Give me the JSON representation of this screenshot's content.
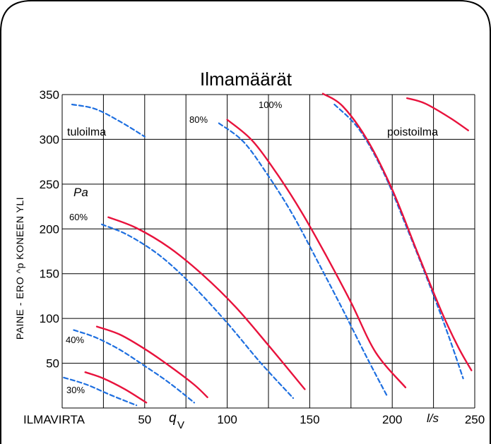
{
  "chart_data": {
    "type": "line",
    "title": "Ilmamäärät",
    "ylabel": "PAINE - ERO ^p KONEEN YLI",
    "y_unit": "Pa",
    "xlabel": "ILMAVIRTA",
    "x_symbol": "q",
    "x_symbol_sub": "V",
    "x_unit": "l/s",
    "xlim": [
      0,
      250
    ],
    "ylim": [
      0,
      350
    ],
    "x_grid": [
      0,
      25,
      50,
      75,
      100,
      125,
      150,
      175,
      200,
      225,
      250
    ],
    "y_grid": [
      0,
      50,
      100,
      150,
      200,
      250,
      300,
      350
    ],
    "x_ticks": [
      50,
      100,
      150,
      200,
      250
    ],
    "y_ticks": [
      50,
      100,
      150,
      200,
      250,
      300,
      350
    ],
    "grid": true,
    "annotations": {
      "supply": "tuloilma",
      "exhaust": "poistoilma",
      "pct_30": "30%",
      "pct_40": "40%",
      "pct_60": "60%",
      "pct_80": "80%",
      "pct_100": "100%"
    },
    "series": [
      {
        "group": "tuloilma",
        "level": "30%",
        "color": "#1e6fe0",
        "dash": true,
        "x": [
          1,
          15,
          30,
          45
        ],
        "y": [
          34,
          26,
          14,
          3
        ]
      },
      {
        "group": "poistoilma",
        "level": "30%",
        "color": "#e8123c",
        "dash": false,
        "x": [
          14,
          25,
          38,
          51
        ],
        "y": [
          40,
          33,
          21,
          6
        ]
      },
      {
        "group": "tuloilma",
        "level": "40%",
        "color": "#1e6fe0",
        "dash": true,
        "x": [
          7,
          20,
          35,
          50,
          65,
          80
        ],
        "y": [
          87,
          79,
          65,
          47,
          28,
          6
        ]
      },
      {
        "group": "poistoilma",
        "level": "40%",
        "color": "#e8123c",
        "dash": false,
        "x": [
          21,
          35,
          50,
          65,
          80,
          88
        ],
        "y": [
          91,
          82,
          66,
          47,
          26,
          12
        ]
      },
      {
        "group": "tuloilma",
        "level": "60%",
        "color": "#1e6fe0",
        "dash": true,
        "x": [
          24,
          40,
          60,
          80,
          100,
          120,
          140
        ],
        "y": [
          205,
          193,
          169,
          135,
          95,
          51,
          11
        ]
      },
      {
        "group": "poistoilma",
        "level": "60%",
        "color": "#e8123c",
        "dash": false,
        "x": [
          28,
          45,
          65,
          85,
          105,
          125,
          147
        ],
        "y": [
          213,
          201,
          179,
          149,
          113,
          70,
          21
        ]
      },
      {
        "group": "tuloilma",
        "level": "80%",
        "color": "#1e6fe0",
        "dash": true,
        "x": [
          95,
          110,
          125,
          140,
          155,
          170,
          185,
          197
        ],
        "y": [
          318,
          297,
          259,
          215,
          163,
          110,
          55,
          13
        ]
      },
      {
        "group": "poistoilma",
        "level": "80%",
        "color": "#e8123c",
        "dash": false,
        "x": [
          100,
          115,
          130,
          145,
          160,
          175,
          190,
          208
        ],
        "y": [
          322,
          299,
          262,
          219,
          170,
          118,
          62,
          23
        ]
      },
      {
        "group": "tuloilma",
        "level": "100%",
        "color": "#1e6fe0",
        "dash": true,
        "x": [
          165,
          180,
          195,
          210,
          225,
          235,
          243
        ],
        "y": [
          339,
          311,
          262,
          196,
          126,
          76,
          33
        ]
      },
      {
        "group": "poistoilma",
        "level": "100%",
        "color": "#e8123c",
        "dash": false,
        "x": [
          158,
          170,
          185,
          200,
          215,
          230,
          240,
          248
        ],
        "y": [
          351,
          337,
          299,
          244,
          175,
          107,
          68,
          42
        ]
      },
      {
        "group": "tuloilma",
        "level": "top",
        "color": "#1e6fe0",
        "dash": true,
        "x": [
          6,
          20,
          35,
          50
        ],
        "y": [
          339,
          334,
          320,
          303
        ]
      },
      {
        "group": "poistoilma",
        "level": "top",
        "color": "#e8123c",
        "dash": false,
        "x": [
          209,
          220,
          235,
          246
        ],
        "y": [
          346,
          340,
          324,
          310
        ]
      }
    ]
  }
}
